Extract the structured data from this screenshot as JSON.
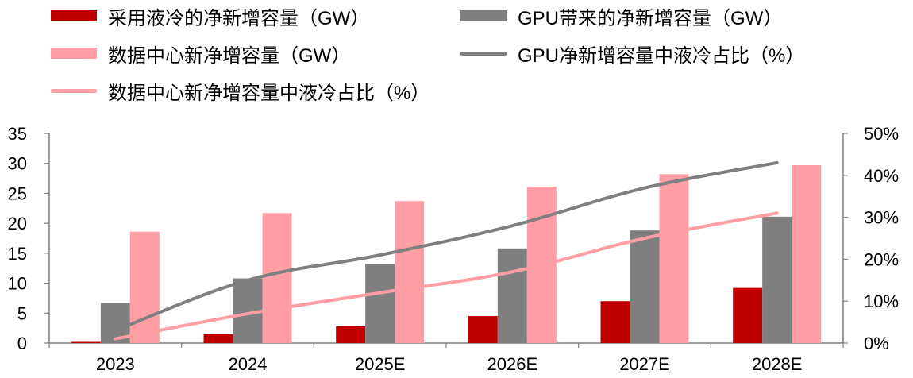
{
  "chart_data": {
    "type": "bar",
    "categories": [
      "2023",
      "2024",
      "2025E",
      "2026E",
      "2027E",
      "2028E"
    ],
    "series": [
      {
        "name": "采用液冷的净新增容量（GW）",
        "kind": "bar",
        "axis": "left",
        "color": "#c00000",
        "values": [
          0.2,
          1.5,
          2.8,
          4.5,
          7.0,
          9.2
        ]
      },
      {
        "name": "GPU带来的净新增容量（GW）",
        "kind": "bar",
        "axis": "left",
        "color": "#7f7f7f",
        "values": [
          6.7,
          10.8,
          13.2,
          15.8,
          18.8,
          21.1
        ]
      },
      {
        "name": "数据中心新净增容量（GW）",
        "kind": "bar",
        "axis": "left",
        "color": "#ff9ea5",
        "values": [
          18.6,
          21.7,
          23.7,
          26.1,
          28.2,
          29.7
        ]
      },
      {
        "name": "GPU净新增容量中液冷占比（%）",
        "kind": "line",
        "axis": "right",
        "color": "#7f7f7f",
        "values": [
          3,
          15,
          21,
          28,
          37,
          43
        ]
      },
      {
        "name": "数据中心新净增容量中液冷占比（%）",
        "kind": "line",
        "axis": "right",
        "color": "#ff9ea5",
        "values": [
          1,
          7,
          12,
          17,
          25,
          31
        ]
      }
    ],
    "left_axis": {
      "ylim": [
        0,
        35
      ],
      "ticks": [
        "0",
        "5",
        "10",
        "15",
        "20",
        "25",
        "30",
        "35"
      ]
    },
    "right_axis": {
      "ylim": [
        0,
        50
      ],
      "ticks": [
        "0%",
        "10%",
        "20%",
        "30%",
        "40%",
        "50%"
      ]
    },
    "title": "",
    "xlabel": "",
    "ylabel": "",
    "legend_position": "top"
  }
}
